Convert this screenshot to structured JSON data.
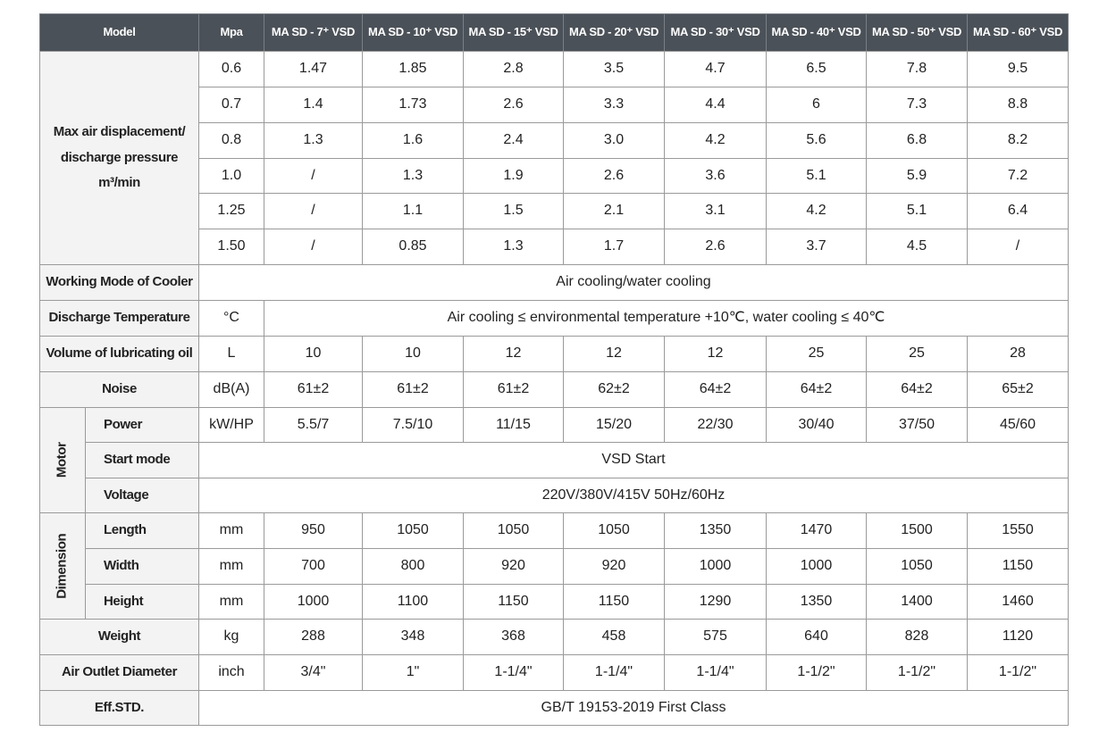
{
  "header": {
    "model": "Model",
    "unit": "Mpa",
    "models": [
      "MA SD - 7⁺ VSD",
      "MA SD - 10⁺ VSD",
      "MA SD - 15⁺ VSD",
      "MA SD - 20⁺ VSD",
      "MA SD - 30⁺ VSD",
      "MA SD - 40⁺ VSD",
      "MA SD - 50⁺ VSD",
      "MA SD - 60⁺ VSD"
    ]
  },
  "displacement": {
    "label": [
      "Max air displacement/",
      "discharge pressure",
      "m³/min"
    ],
    "rows": [
      {
        "pressure": "0.6",
        "values": [
          "1.47",
          "1.85",
          "2.8",
          "3.5",
          "4.7",
          "6.5",
          "7.8",
          "9.5"
        ]
      },
      {
        "pressure": "0.7",
        "values": [
          "1.4",
          "1.73",
          "2.6",
          "3.3",
          "4.4",
          "6",
          "7.3",
          "8.8"
        ]
      },
      {
        "pressure": "0.8",
        "values": [
          "1.3",
          "1.6",
          "2.4",
          "3.0",
          "4.2",
          "5.6",
          "6.8",
          "8.2"
        ]
      },
      {
        "pressure": "1.0",
        "values": [
          "/",
          "1.3",
          "1.9",
          "2.6",
          "3.6",
          "5.1",
          "5.9",
          "7.2"
        ]
      },
      {
        "pressure": "1.25",
        "values": [
          "/",
          "1.1",
          "1.5",
          "2.1",
          "3.1",
          "4.2",
          "5.1",
          "6.4"
        ]
      },
      {
        "pressure": "1.50",
        "values": [
          "/",
          "0.85",
          "1.3",
          "1.7",
          "2.6",
          "3.7",
          "4.5",
          "/"
        ]
      }
    ]
  },
  "cooler": {
    "label": "Working Mode of Cooler",
    "value": "Air cooling/water cooling"
  },
  "discharge_temperature": {
    "label": "Discharge Temperature",
    "unit": "°C",
    "value": "Air cooling ≤ environmental temperature +10℃, water cooling ≤ 40℃"
  },
  "lubricating_oil": {
    "label": "Volume of lubricating oil",
    "unit": "L",
    "values": [
      "10",
      "10",
      "12",
      "12",
      "12",
      "25",
      "25",
      "28"
    ]
  },
  "noise": {
    "label": "Noise",
    "unit": "dB(A)",
    "values": [
      "61±2",
      "61±2",
      "61±2",
      "62±2",
      "64±2",
      "64±2",
      "64±2",
      "65±2"
    ]
  },
  "motor": {
    "group": "Motor",
    "power": {
      "label": "Power",
      "unit": "kW/HP",
      "values": [
        "5.5/7",
        "7.5/10",
        "11/15",
        "15/20",
        "22/30",
        "30/40",
        "37/50",
        "45/60"
      ]
    },
    "start_mode": {
      "label": "Start mode",
      "value": "VSD Start"
    },
    "voltage": {
      "label": "Voltage",
      "value": "220V/380V/415V  50Hz/60Hz"
    }
  },
  "dimension": {
    "group": "Dimension",
    "rows": [
      {
        "label": "Length",
        "unit": "mm",
        "values": [
          "950",
          "1050",
          "1050",
          "1050",
          "1350",
          "1470",
          "1500",
          "1550"
        ]
      },
      {
        "label": "Width",
        "unit": "mm",
        "values": [
          "700",
          "800",
          "920",
          "920",
          "1000",
          "1000",
          "1050",
          "1150"
        ]
      },
      {
        "label": "Height",
        "unit": "mm",
        "values": [
          "1000",
          "1100",
          "1150",
          "1150",
          "1290",
          "1350",
          "1400",
          "1460"
        ]
      }
    ]
  },
  "weight": {
    "label": "Weight",
    "unit": "kg",
    "values": [
      "288",
      "348",
      "368",
      "458",
      "575",
      "640",
      "828",
      "1120"
    ]
  },
  "air_outlet": {
    "label": "Air Outlet Diameter",
    "unit": "inch",
    "values": [
      "3/4\"",
      "1\"",
      "1-1/4\"",
      "1-1/4\"",
      "1-1/4\"",
      "1-1/2\"",
      "1-1/2\"",
      "1-1/2\""
    ]
  },
  "eff_std": {
    "label": "Eff.STD.",
    "value": "GB/T 19153-2019 First Class"
  }
}
